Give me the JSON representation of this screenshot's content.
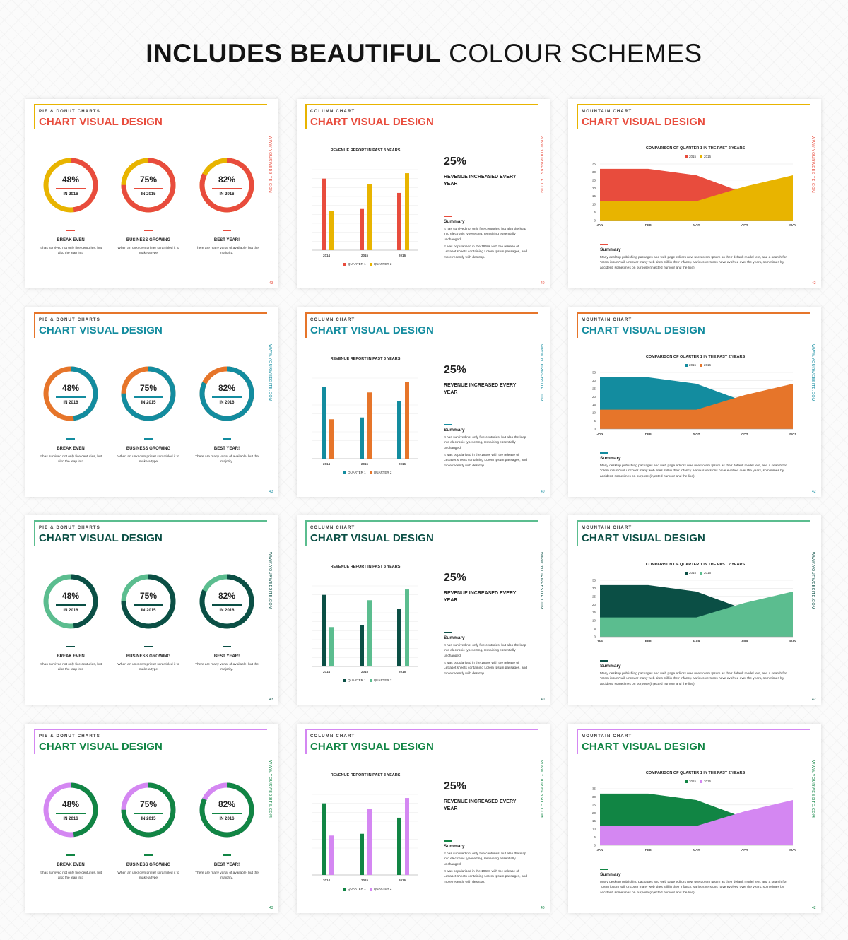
{
  "headline": {
    "bold": "INCLUDES BEAUTIFUL",
    "light": "COLOUR SCHEMES"
  },
  "slide_text": {
    "title": "CHART VISUAL DESIGN",
    "vertical": "WWW.YOURWEBSITE.COM",
    "donut": {
      "kicker": "PIE & DONUT CHARTS",
      "page": "43",
      "items": [
        {
          "pct": "48%",
          "year": "IN 2016",
          "label": "BREAK EVEN",
          "text": "It has survived not only five centuries, but also the leap into"
        },
        {
          "pct": "75%",
          "year": "IN 2015",
          "label": "BUSINESS GROWING",
          "text": "When an unknown printer scrambled it to make a type"
        },
        {
          "pct": "82%",
          "year": "IN 2016",
          "label": "BEST YEAR!",
          "text": "There are many variat of available, but the majority."
        }
      ]
    },
    "column": {
      "kicker": "COLUMN CHART",
      "page": "40",
      "chart_title": "REVENUE REPORT IN PAST 3 YEARS",
      "big": "25%",
      "big_sub": "REVENUE INCREASED EVERY YEAR",
      "summary_head": "Summary",
      "p1": "It has survived not only five centuries, but also the leap into electronic typesetting, remaining essentially unchanged.",
      "p2": "It was popularised in the 1960s with the release of Letraset sheets containing Lorem Ipsum passages, and more recently with desktop."
    },
    "mountain": {
      "kicker": "MOUNTAIN CHART",
      "page": "42",
      "chart_title": "COMPARISON OF QUARTER 1 IN THE PAST 2 YEARS",
      "summary_head": "Summary",
      "text": "Many desktop publishing packages and web page editors now use Lorem Ipsum as their default model text, and a search for 'lorem ipsum' will uncover many web sites still in their infancy. Various versions have evolved over the years, sometimes by accident, sometimes on purpose (injected humour and the like)."
    }
  },
  "themes": [
    {
      "frame": "#e8b400",
      "title": "#e84c3d",
      "primary": "#e84c3d",
      "secondary": "#e8b400"
    },
    {
      "frame": "#e6752a",
      "title": "#138c9f",
      "primary": "#138c9f",
      "secondary": "#e6752a"
    },
    {
      "frame": "#5bbd8f",
      "title": "#0b4f45",
      "primary": "#0b4f45",
      "secondary": "#5bbd8f"
    },
    {
      "frame": "#d487f2",
      "title": "#118544",
      "primary": "#118544",
      "secondary": "#d487f2"
    }
  ],
  "chart_data": [
    {
      "type": "pie",
      "title": "",
      "series": [
        {
          "values": [
            48,
            52
          ]
        },
        {
          "values": [
            75,
            25
          ]
        },
        {
          "values": [
            82,
            18
          ]
        }
      ]
    },
    {
      "type": "bar",
      "title": "REVENUE REPORT IN PAST 3 YEARS",
      "categories": [
        "2014",
        "2015",
        "2016"
      ],
      "series": [
        {
          "name": "QUARTER 1",
          "values": [
            40,
            23,
            32
          ]
        },
        {
          "name": "QUARTER 2",
          "values": [
            22,
            37,
            43
          ]
        }
      ],
      "ylim": [
        0,
        45
      ]
    },
    {
      "type": "area",
      "title": "COMPARISON OF QUARTER 1 IN THE PAST 2 YEARS",
      "categories": [
        "JAN",
        "FEB",
        "MAR",
        "APR",
        "MAY"
      ],
      "series": [
        {
          "name": "2015",
          "values": [
            32,
            32,
            28,
            17,
            18
          ]
        },
        {
          "name": "2016",
          "values": [
            12,
            12,
            12,
            21,
            28
          ]
        }
      ],
      "yticks": [
        "0",
        "5",
        "10",
        "15",
        "20",
        "25",
        "30",
        "35"
      ],
      "ylim": [
        0,
        35
      ]
    }
  ]
}
